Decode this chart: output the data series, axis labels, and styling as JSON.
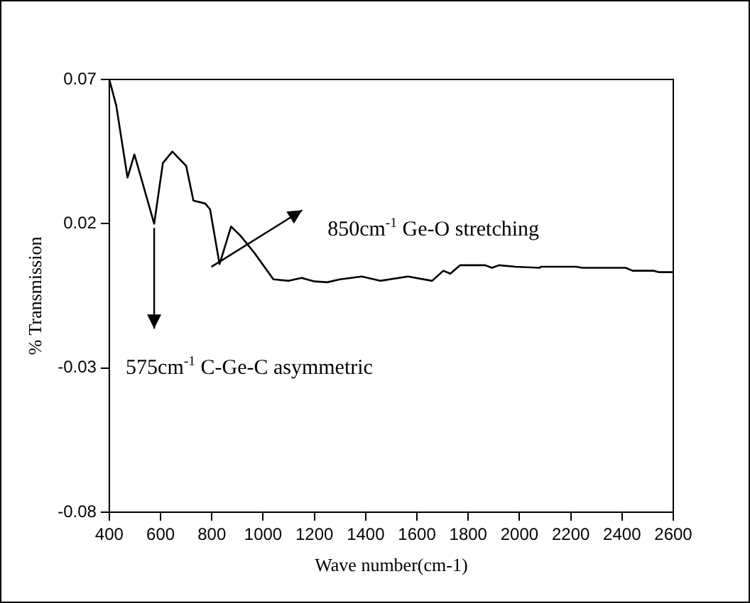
{
  "chart_data": {
    "type": "line",
    "xlabel": "Wave number(cm-1)",
    "ylabel": "% Transmission",
    "xlim": [
      400,
      2600
    ],
    "xticks": [
      400,
      600,
      800,
      1000,
      1200,
      1400,
      1600,
      1800,
      2000,
      2200,
      2400,
      2600
    ],
    "ylim": [
      -0.08,
      0.07
    ],
    "yticks": [
      0.07,
      0.02,
      -0.03,
      -0.08
    ],
    "grid": false,
    "legend": false,
    "marker": "none",
    "line_style": "solid",
    "series": [
      {
        "color": "#000000",
        "x": [
          400,
          427,
          471,
          498,
          575,
          609,
          646,
          700,
          728,
          774,
          793,
          830,
          875,
          910,
          965,
          1040,
          1100,
          1150,
          1200,
          1250,
          1300,
          1385,
          1456,
          1565,
          1659,
          1703,
          1730,
          1768,
          1866,
          1893,
          1920,
          1985,
          2078,
          2085,
          2222,
          2244,
          2414,
          2441,
          2523,
          2545,
          2600
        ],
        "values": [
          0.07,
          0.061,
          0.036,
          0.044,
          0.02,
          0.041,
          0.045,
          0.04,
          0.028,
          0.027,
          0.025,
          0.006,
          0.019,
          0.016,
          0.01,
          0.0007,
          0.0002,
          0.0012,
          0.0,
          -0.0003,
          0.0007,
          0.0017,
          0.0002,
          0.0017,
          0.0002,
          0.0037,
          0.0027,
          0.0056,
          0.0056,
          0.0047,
          0.0056,
          0.0051,
          0.0047,
          0.0051,
          0.0051,
          0.0047,
          0.0047,
          0.0037,
          0.0037,
          0.0032,
          0.0032
        ]
      }
    ],
    "annotations": [
      {
        "text": "575cm$^{-1}$ C-Ge-C asymmetric",
        "x": 575,
        "y": 0.02
      },
      "850cm$^{-1}$ Ge-O stretching"
    ]
  }
}
